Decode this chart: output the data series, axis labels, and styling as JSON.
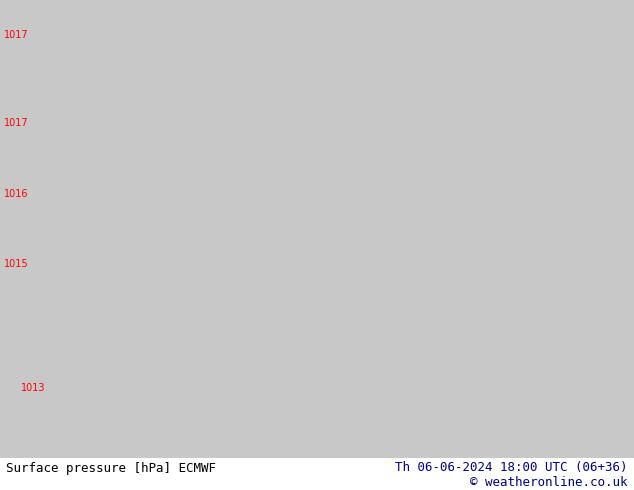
{
  "title_left": "Surface pressure [hPa] ECMWF",
  "title_right": "Th 06-06-2024 18:00 UTC (06+36)",
  "copyright": "© weatheronline.co.uk",
  "fig_width": 6.34,
  "fig_height": 4.9,
  "dpi": 100,
  "land_color": "#b8f080",
  "sea_color": "#c8c8c8",
  "isobar_color": "#ff0000",
  "coast_color": "#000000",
  "title_color": "#000080",
  "copyright_color": "#000080",
  "title_fontsize": 9,
  "label_fontsize": 7,
  "lon_min": 3.0,
  "lon_max": 22.0,
  "lat_min": 35.5,
  "lat_max": 48.5
}
